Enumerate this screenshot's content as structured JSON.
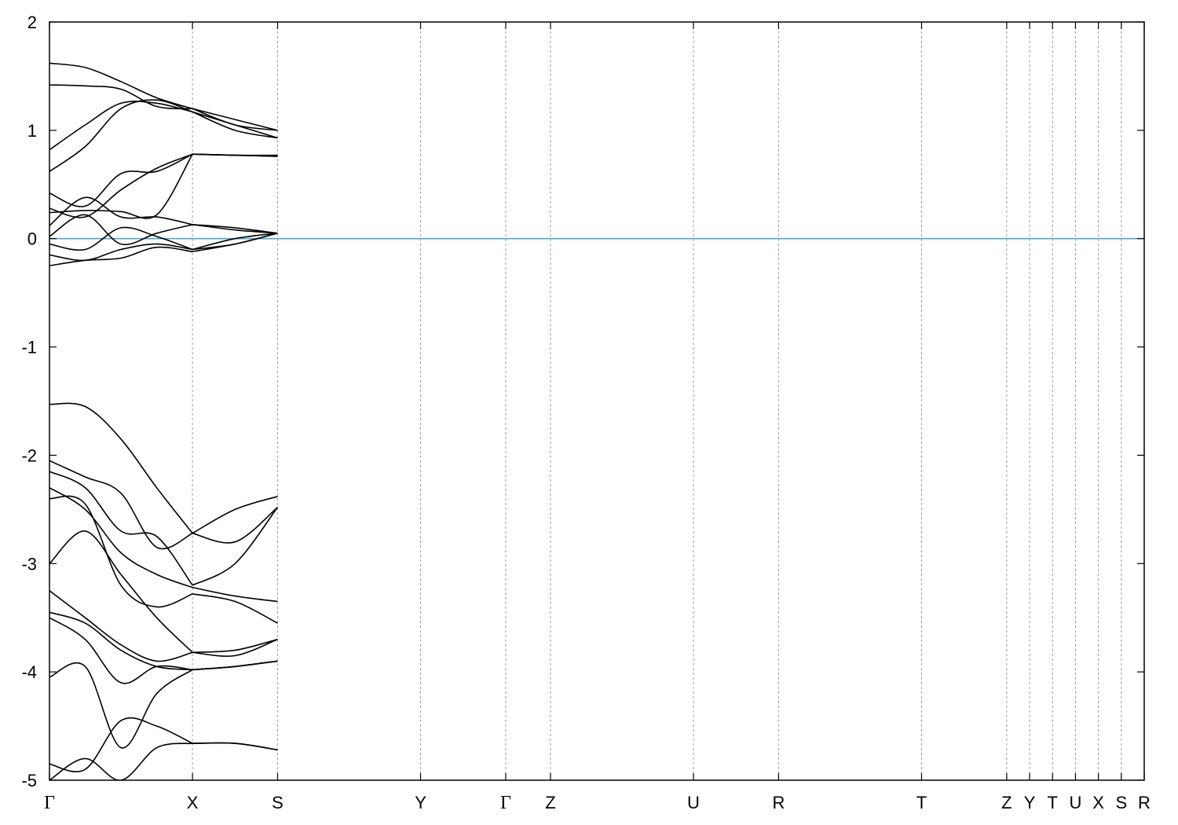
{
  "chart_data": {
    "type": "line",
    "title": "",
    "xlabel": "",
    "ylabel": "",
    "ylim": [
      -5,
      2
    ],
    "yticks": [
      -5,
      -4,
      -3,
      -2,
      -1,
      0,
      1,
      2
    ],
    "reference_line": {
      "y": 0,
      "color": "#4aa8c8"
    },
    "kpoints": [
      {
        "label": "Γ",
        "x": 0.0
      },
      {
        "label": "X",
        "x": 1.31
      },
      {
        "label": "S",
        "x": 2.09
      },
      {
        "label": "Y",
        "x": 3.4
      },
      {
        "label": "Γ",
        "x": 4.18
      },
      {
        "label": "Z",
        "x": 4.59
      },
      {
        "label": "U",
        "x": 5.9
      },
      {
        "label": "R",
        "x": 6.68
      },
      {
        "label": "T",
        "x": 7.99
      },
      {
        "label": "Z",
        "x": 8.77
      },
      {
        "label": "Y",
        "x": 8.98
      },
      {
        "label": "T",
        "x": 9.19
      },
      {
        "label": "U",
        "x": 9.4
      },
      {
        "label": "X",
        "x": 9.61
      },
      {
        "label": "S",
        "x": 9.82
      },
      {
        "label": "R",
        "x": 10.03
      }
    ],
    "xlim": [
      0,
      10.03
    ],
    "segments": [
      {
        "from": 0,
        "to": 1,
        "bands": [
          [
            1.62,
            1.58,
            1.45,
            1.3,
            1.2
          ],
          [
            1.42,
            1.41,
            1.38,
            1.22,
            1.2
          ],
          [
            0.82,
            1.05,
            1.25,
            1.25,
            1.17
          ],
          [
            0.62,
            0.85,
            1.2,
            1.28,
            1.17
          ],
          [
            0.42,
            0.3,
            0.6,
            0.62,
            0.78
          ],
          [
            0.28,
            0.2,
            0.45,
            0.65,
            0.78
          ],
          [
            0.24,
            0.26,
            0.25,
            0.22,
            0.78
          ],
          [
            0.12,
            0.38,
            0.2,
            0.2,
            0.13
          ],
          [
            0.02,
            0.22,
            -0.05,
            0.05,
            0.13
          ],
          [
            -0.05,
            -0.1,
            0.1,
            0.02,
            -0.1
          ],
          [
            -0.15,
            -0.2,
            -0.1,
            -0.05,
            -0.1
          ],
          [
            -0.25,
            -0.2,
            -0.18,
            -0.08,
            -0.12
          ],
          [
            -1.53,
            -1.55,
            -1.85,
            -2.3,
            -2.72
          ],
          [
            -2.05,
            -2.2,
            -2.35,
            -2.85,
            -2.72
          ],
          [
            -2.15,
            -2.3,
            -2.7,
            -2.75,
            -3.2
          ],
          [
            -2.3,
            -2.5,
            -2.9,
            -3.1,
            -3.22
          ],
          [
            -2.4,
            -2.45,
            -3.2,
            -3.4,
            -3.28
          ],
          [
            -3.0,
            -2.7,
            -3.1,
            -3.5,
            -3.82
          ],
          [
            -3.25,
            -3.5,
            -3.75,
            -3.9,
            -3.82
          ],
          [
            -3.45,
            -3.55,
            -3.8,
            -3.95,
            -3.98
          ],
          [
            -3.5,
            -3.7,
            -4.1,
            -3.95,
            -3.98
          ],
          [
            -4.05,
            -3.95,
            -4.7,
            -4.2,
            -3.98
          ],
          [
            -4.85,
            -4.9,
            -4.45,
            -4.5,
            -4.66
          ],
          [
            -5.0,
            -4.8,
            -5.0,
            -4.7,
            -4.66
          ]
        ]
      },
      {
        "from": 1,
        "to": 2,
        "bands": [
          [
            1.2,
            1.1,
            1.0
          ],
          [
            1.2,
            1.05,
            1.0
          ],
          [
            1.17,
            1.05,
            0.93
          ],
          [
            1.17,
            1.0,
            0.93
          ],
          [
            0.78,
            0.77,
            0.77
          ],
          [
            0.78,
            0.77,
            0.76
          ],
          [
            0.78,
            0.77,
            0.76
          ],
          [
            0.13,
            0.1,
            0.05
          ],
          [
            0.13,
            0.08,
            0.05
          ],
          [
            -0.1,
            0.0,
            0.05
          ],
          [
            -0.1,
            -0.05,
            0.05
          ],
          [
            -0.12,
            -0.05,
            0.05
          ],
          [
            -2.72,
            -2.5,
            -2.38
          ],
          [
            -2.72,
            -2.8,
            -2.48
          ],
          [
            -3.2,
            -3.0,
            -2.48
          ],
          [
            -3.22,
            -3.3,
            -3.35
          ],
          [
            -3.28,
            -3.35,
            -3.55
          ],
          [
            -3.82,
            -3.8,
            -3.7
          ],
          [
            -3.82,
            -3.85,
            -3.7
          ],
          [
            -3.98,
            -3.95,
            -3.9
          ],
          [
            -3.98,
            -3.95,
            -3.9
          ],
          [
            -3.98,
            -3.95,
            -3.9
          ],
          [
            -4.66,
            -4.66,
            -4.72
          ],
          [
            -4.66,
            -4.66,
            -4.72
          ]
        ]
      }
    ]
  }
}
